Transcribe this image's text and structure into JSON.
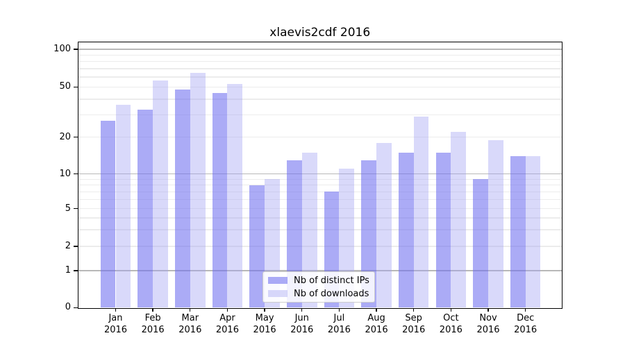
{
  "figure_title": "xlaevis2cdf 2016",
  "chart_data": {
    "type": "bar",
    "title": "xlaevis2cdf 2016",
    "categories": [
      "Jan",
      "Feb",
      "Mar",
      "Apr",
      "May",
      "Jun",
      "Jul",
      "Aug",
      "Sep",
      "Oct",
      "Nov",
      "Dec"
    ],
    "category_year": "2016",
    "series": [
      {
        "name": "Nb of distinct IPs",
        "color": "rgba(110,110,240,0.58)",
        "values": [
          27,
          33,
          48,
          45,
          8,
          13,
          7,
          13,
          15,
          15,
          9,
          14
        ]
      },
      {
        "name": "Nb of downloads",
        "color": "rgba(160,160,242,0.40)",
        "values": [
          36,
          56,
          65,
          53,
          9,
          15,
          11,
          18,
          29,
          22,
          19,
          14
        ]
      }
    ],
    "yaxis": {
      "scale": "symlog",
      "tick_labels": [
        "100",
        "50",
        "20",
        "10",
        "5",
        "2",
        "1",
        "0"
      ],
      "tick_values": [
        100,
        50,
        20,
        10,
        5,
        2,
        1,
        0
      ],
      "major_gridline_values": [
        1,
        10,
        100
      ],
      "minor_gridline_values": [
        2,
        3,
        4,
        5,
        6,
        7,
        8,
        9,
        20,
        30,
        40,
        50,
        60,
        70,
        80,
        90
      ],
      "ylim_top_label": "100"
    },
    "legend": {
      "position": "lower center",
      "entries": [
        "Nb of distinct IPs",
        "Nb of downloads"
      ]
    },
    "grid": "on",
    "colors": {
      "bar_distinct_ips": "rgba(110,110,240,0.58)",
      "bar_downloads": "rgba(160,160,242,0.40)",
      "major_grid": "#b8b8b8",
      "minor_grid": "#ececec",
      "spine": "#000000",
      "text": "#000000",
      "legend_border": "#cccccc"
    }
  }
}
